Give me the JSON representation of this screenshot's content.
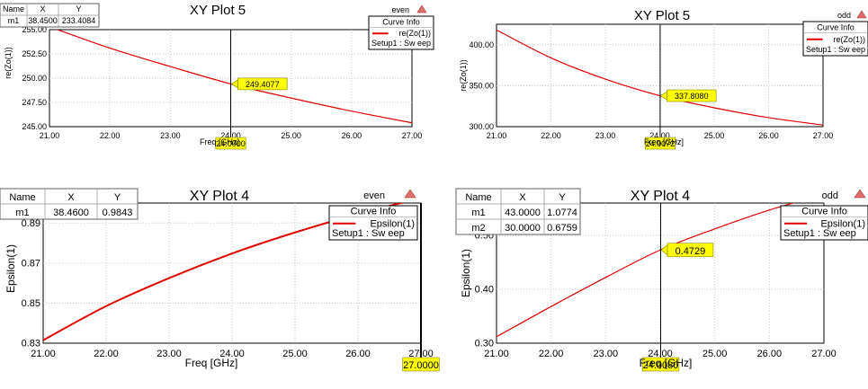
{
  "chart_data": [
    {
      "type": "line",
      "title": "XY Plot 5",
      "corner_label": "even",
      "xlabel": "Freq [GHz]",
      "ylabel": "re(Zo(1))",
      "xlim": [
        21,
        27
      ],
      "ylim": [
        245,
        255
      ],
      "xticks": [
        "21.00",
        "22.00",
        "23.00",
        "24.00",
        "25.00",
        "26.00",
        "27.00"
      ],
      "yticks": [
        "245.00",
        "247.50",
        "250.00",
        "252.50",
        "255.00"
      ],
      "ytick_values": [
        245,
        247.5,
        250,
        252.5,
        255
      ],
      "x": [
        21,
        22,
        23,
        24,
        25,
        26,
        27
      ],
      "series": [
        {
          "name": "re(Zo(1))",
          "values": [
            255.3,
            253.1,
            251.2,
            249.41,
            247.95,
            246.6,
            245.4
          ]
        }
      ],
      "legend": {
        "header": "Curve Info",
        "line_label": "re(Zo(1))",
        "setup_label": "Setup1 : Sw eep"
      },
      "marker_table": {
        "headers": [
          "Name",
          "X",
          "Y"
        ],
        "rows": [
          [
            "m1",
            "38.4500",
            "233.4084"
          ]
        ]
      },
      "markers": [
        {
          "x": 24.0,
          "y": 249.4077,
          "label": "249.4077"
        }
      ],
      "cursor": {
        "x": 24.0,
        "label": "24.0000"
      },
      "cursor_color": "#000000"
    },
    {
      "type": "line",
      "title": "XY Plot 5",
      "corner_label": "odd",
      "xlabel": "Freq [GHz]",
      "ylabel": "re(Zo(1))",
      "xlim": [
        21,
        27
      ],
      "ylim": [
        300,
        425
      ],
      "xticks": [
        "21.00",
        "22.00",
        "23.00",
        "24.00",
        "25.00",
        "26.00",
        "27.00"
      ],
      "yticks": [
        "300.00",
        "350.00",
        "400.00"
      ],
      "ytick_values": [
        300,
        350,
        400
      ],
      "x": [
        21,
        22,
        23,
        24,
        25,
        26,
        27
      ],
      "series": [
        {
          "name": "re(Zo(1))",
          "values": [
            418,
            384,
            358,
            337.8,
            323,
            311,
            302
          ]
        }
      ],
      "legend": {
        "header": "Curve Info",
        "line_label": "re(Zo(1))",
        "setup_label": "Setup1 : Sw eep"
      },
      "marker_table": null,
      "markers": [
        {
          "x": 24.0,
          "y": 337.808,
          "label": "337.8080"
        }
      ],
      "cursor": {
        "x": 24.0072,
        "label": "24.0072"
      },
      "cursor_color": "#000000"
    },
    {
      "type": "line",
      "title": "XY Plot 4",
      "corner_label": "even",
      "xlabel": "Freq [GHz]",
      "ylabel": "Epsilon(1)",
      "xlim": [
        21,
        27
      ],
      "ylim": [
        0.83,
        0.9
      ],
      "xticks": [
        "21.00",
        "22.00",
        "23.00",
        "24.00",
        "25.00",
        "26.00",
        "27.00"
      ],
      "yticks": [
        "0.83",
        "0.85",
        "0.87",
        "0.89"
      ],
      "ytick_values": [
        0.83,
        0.85,
        0.87,
        0.89
      ],
      "x": [
        21,
        22,
        23,
        24,
        25,
        26,
        27
      ],
      "series": [
        {
          "name": "Epsilon(1)",
          "values": [
            0.8315,
            0.8485,
            0.8625,
            0.8748,
            0.8853,
            0.8945,
            0.9025
          ]
        }
      ],
      "legend": {
        "header": "Curve Info",
        "line_label": "Epsilon(1)",
        "setup_label": "Setup1 : Sw eep"
      },
      "marker_table": {
        "headers": [
          "Name",
          "X",
          "Y"
        ],
        "rows": [
          [
            "m1",
            "38.4600",
            "0.9843"
          ]
        ]
      },
      "markers": [],
      "cursor": {
        "x": 27.0,
        "label": "27.0000"
      },
      "cursor_color": "#000000"
    },
    {
      "type": "line",
      "title": "XY Plot 4",
      "corner_label": "odd",
      "xlabel": "Freq [GHz]",
      "ylabel": "Epsilon(1)",
      "xlim": [
        21,
        27
      ],
      "ylim": [
        0.3,
        0.56
      ],
      "xticks": [
        "21.00",
        "22.00",
        "23.00",
        "24.00",
        "25.00",
        "26.00",
        "27.00"
      ],
      "yticks": [
        "0.30",
        "0.40",
        "0.50"
      ],
      "ytick_values": [
        0.3,
        0.4,
        0.5
      ],
      "x": [
        21,
        22,
        23,
        24,
        25,
        26,
        27
      ],
      "series": [
        {
          "name": "Epsilon(1)",
          "values": [
            0.312,
            0.368,
            0.422,
            0.4729,
            0.512,
            0.547,
            0.576
          ]
        }
      ],
      "legend": {
        "header": "Curve Info",
        "line_label": "Epsilon(1)",
        "setup_label": "Setup1 : Sw eep"
      },
      "marker_table": {
        "headers": [
          "Name",
          "X",
          "Y"
        ],
        "rows": [
          [
            "m1",
            "43.0000",
            "1.0774"
          ],
          [
            "m2",
            "30.0000",
            "0.6759"
          ]
        ]
      },
      "markers": [
        {
          "x": 24.0,
          "y": 0.4729,
          "label": "0.4729"
        }
      ],
      "cursor": {
        "x": 24.008,
        "label": "24.0080"
      },
      "cursor_color": "#000000"
    }
  ],
  "colors": {
    "curve": "#e00000",
    "grid": "#c8c8c8",
    "marker_fill": "#ffff00"
  },
  "icons": {
    "corner": "triangle-warning-icon"
  }
}
